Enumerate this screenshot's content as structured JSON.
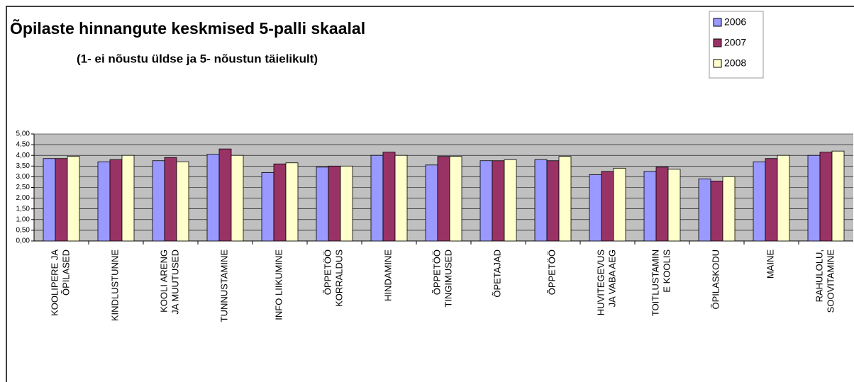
{
  "chart_data": {
    "type": "bar",
    "title": "Õpilaste hinnangute keskmised 5-palli skaalal",
    "subtitle": "(1- ei nõustu üldse ja 5- nõustun täielikult)",
    "categories": [
      "KOOLIPERE JA\nÕPILASED",
      "KINDLUSTUNNE",
      "KOOLI ARENG\nJA MUUTUSED",
      "TUNNUSTAMINE",
      "INFO LIIKUMINE",
      "ÕPPETÖÖ\nKORRALDUS",
      "HINDAMINE",
      "ÕPPETÖÖ\nTINGIMUSED",
      "ÕPETAJAD",
      "ÕPPETÖÖ",
      "HUVITEGEVUS\nJA VABA AEG",
      "TOITLUSTAMIN\nE KOOLIS",
      "ÕPILASKODU",
      "MAINE",
      "RAHULOLU,\nSOOVITAMINE"
    ],
    "series": [
      {
        "name": "2006",
        "color": "#9999ff",
        "values": [
          3.85,
          3.7,
          3.75,
          4.05,
          3.2,
          3.45,
          4.0,
          3.55,
          3.75,
          3.8,
          3.1,
          3.25,
          2.9,
          3.7,
          4.0
        ]
      },
      {
        "name": "2007",
        "color": "#993366",
        "values": [
          3.85,
          3.8,
          3.9,
          4.3,
          3.6,
          3.5,
          4.15,
          3.95,
          3.75,
          3.75,
          3.25,
          3.45,
          2.8,
          3.85,
          4.15
        ]
      },
      {
        "name": "2008",
        "color": "#ffffcc",
        "values": [
          3.95,
          4.0,
          3.7,
          4.0,
          3.65,
          3.5,
          4.0,
          3.95,
          3.8,
          3.95,
          3.4,
          3.35,
          3.0,
          4.0,
          4.2
        ]
      }
    ],
    "ylim": [
      0,
      5
    ],
    "yticks": [
      {
        "value": 0,
        "label": "0,00"
      },
      {
        "value": 0.5,
        "label": "0,50"
      },
      {
        "value": 1,
        "label": "1,00"
      },
      {
        "value": 1.5,
        "label": "1,50"
      },
      {
        "value": 2,
        "label": "2,00"
      },
      {
        "value": 2.5,
        "label": "2,50"
      },
      {
        "value": 3,
        "label": "3,00"
      },
      {
        "value": 3.5,
        "label": "3,50"
      },
      {
        "value": 4,
        "label": "4,00"
      },
      {
        "value": 4.5,
        "label": "4,50"
      },
      {
        "value": 5,
        "label": "5,00"
      }
    ],
    "grid": true,
    "legend": "top-right"
  }
}
